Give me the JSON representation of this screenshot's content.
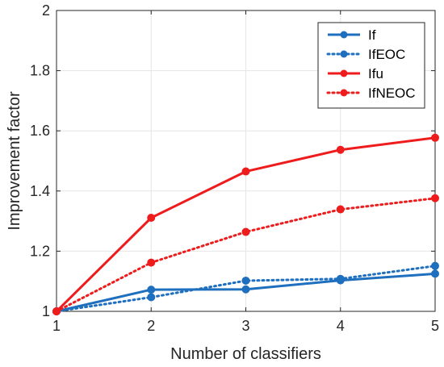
{
  "chart_data": {
    "type": "line",
    "title": "",
    "xlabel": "Number of classifiers",
    "ylabel": "Improvement factor",
    "x": [
      1,
      2,
      3,
      4,
      5
    ],
    "xlim": [
      1,
      5
    ],
    "ylim": [
      1,
      2
    ],
    "xticks": [
      "1",
      "2",
      "3",
      "4",
      "5"
    ],
    "yticks": [
      "1",
      "1.2",
      "1.4",
      "1.6",
      "1.8",
      "2"
    ],
    "grid": true,
    "legend_position": "top-right",
    "series": [
      {
        "name": "If",
        "values": [
          1.0,
          1.072,
          1.073,
          1.103,
          1.125
        ],
        "color": "#1f6fbf",
        "style": "solid"
      },
      {
        "name": "IfEOC",
        "values": [
          1.0,
          1.047,
          1.102,
          1.108,
          1.151
        ],
        "color": "#1f6fbf",
        "style": "dotted"
      },
      {
        "name": "Ifu",
        "values": [
          1.0,
          1.311,
          1.465,
          1.537,
          1.577
        ],
        "color": "#ee1c1c",
        "style": "solid"
      },
      {
        "name": "IfNEOC",
        "values": [
          1.0,
          1.162,
          1.264,
          1.339,
          1.376
        ],
        "color": "#ee1c1c",
        "style": "dotted"
      }
    ]
  }
}
